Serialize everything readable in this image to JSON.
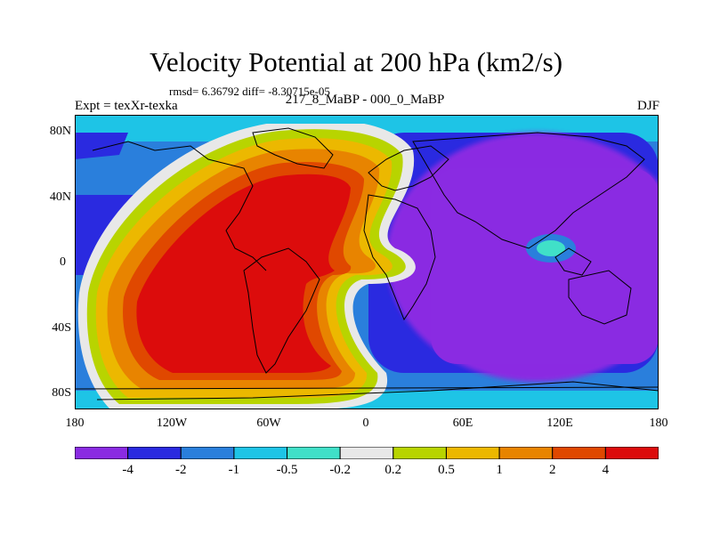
{
  "title": "Velocity Potential at 200 hPa (km2/s)",
  "stats": "rmsd= 6.36792 diff= -8.30715e-05",
  "left_label": "Expt = texXr-texka",
  "center_label": "217_8_MaBP - 000_0_MaBP",
  "right_label": "DJF",
  "y_ticks": [
    "80N",
    "40N",
    "0",
    "40S",
    "80S"
  ],
  "x_ticks": [
    "180",
    "120W",
    "60W",
    "0",
    "60E",
    "120E",
    "180"
  ],
  "colorbar": {
    "colors": [
      "#8a2be2",
      "#2a2ae0",
      "#2a7fdc",
      "#1ec4e6",
      "#40e0c8",
      "#e8e8e8",
      "#b8d400",
      "#ecb800",
      "#e88400",
      "#e04800",
      "#dc0c0c"
    ],
    "labels": [
      "-4",
      "-2",
      "-1",
      "-0.5",
      "-0.2",
      "0.2",
      "0.5",
      "1",
      "2",
      "4"
    ]
  },
  "colors": {
    "negative_strong": "#8a2be2",
    "positive_strong": "#dc0c0c",
    "neutral": "#e8e8e8"
  }
}
